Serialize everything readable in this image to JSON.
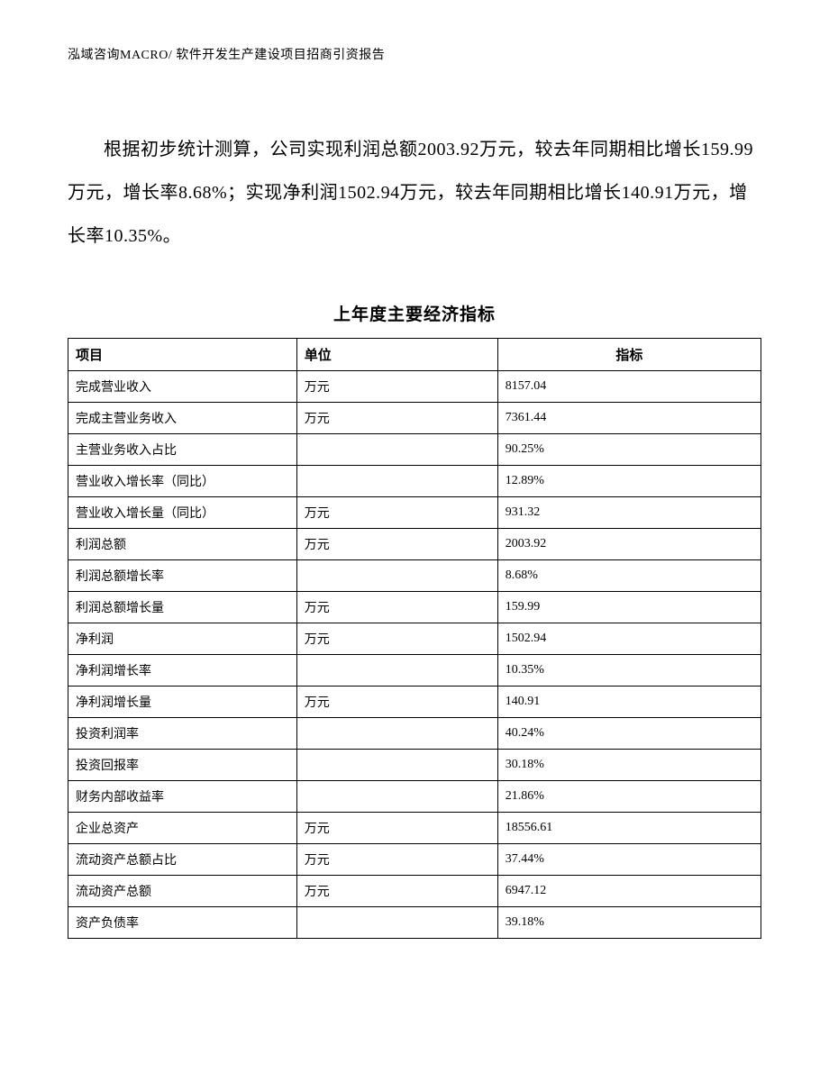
{
  "header": {
    "text": "泓域咨询MACRO/ 软件开发生产建设项目招商引资报告"
  },
  "paragraph": {
    "text": "根据初步统计测算，公司实现利润总额2003.92万元，较去年同期相比增长159.99万元，增长率8.68%；实现净利润1502.94万元，较去年同期相比增长140.91万元，增长率10.35%。"
  },
  "table": {
    "title": "上年度主要经济指标",
    "columns": [
      "项目",
      "单位",
      "指标"
    ],
    "rows": [
      [
        "完成营业收入",
        "万元",
        "8157.04"
      ],
      [
        "完成主营业务收入",
        "万元",
        "7361.44"
      ],
      [
        "主营业务收入占比",
        "",
        "90.25%"
      ],
      [
        "营业收入增长率（同比）",
        "",
        "12.89%"
      ],
      [
        "营业收入增长量（同比）",
        "万元",
        "931.32"
      ],
      [
        "利润总额",
        "万元",
        "2003.92"
      ],
      [
        "利润总额增长率",
        "",
        "8.68%"
      ],
      [
        "利润总额增长量",
        "万元",
        "159.99"
      ],
      [
        "净利润",
        "万元",
        "1502.94"
      ],
      [
        "净利润增长率",
        "",
        "10.35%"
      ],
      [
        "净利润增长量",
        "万元",
        "140.91"
      ],
      [
        "投资利润率",
        "",
        "40.24%"
      ],
      [
        "投资回报率",
        "",
        "30.18%"
      ],
      [
        "财务内部收益率",
        "",
        "21.86%"
      ],
      [
        "企业总资产",
        "万元",
        "18556.61"
      ],
      [
        "流动资产总额占比",
        "万元",
        "37.44%"
      ],
      [
        "流动资产总额",
        "万元",
        "6947.12"
      ],
      [
        "资产负债率",
        "",
        "39.18%"
      ]
    ]
  }
}
